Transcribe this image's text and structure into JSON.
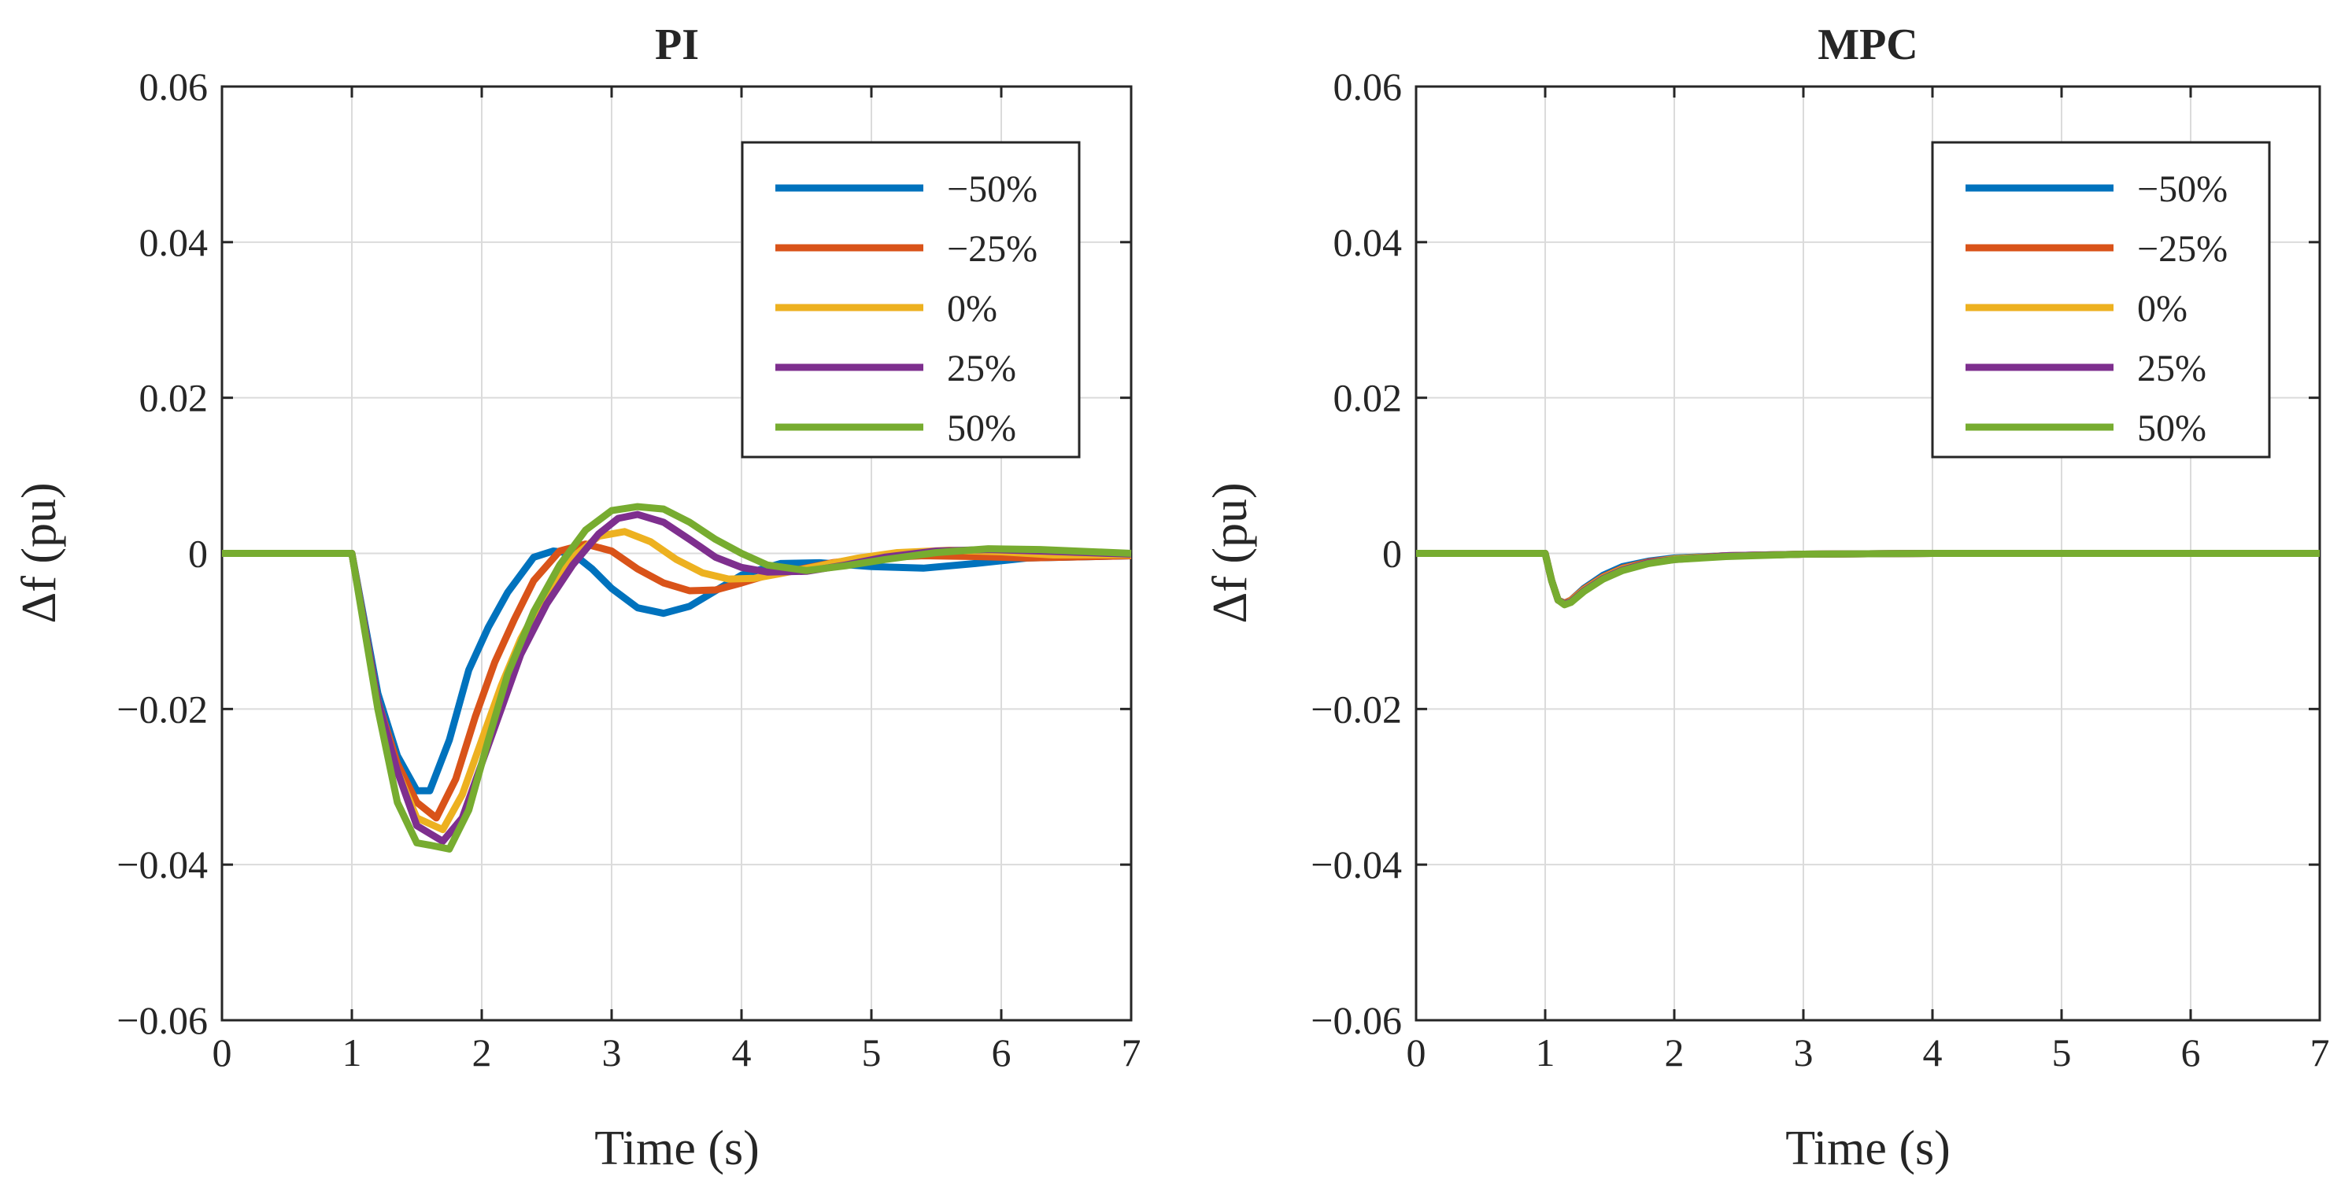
{
  "colors": {
    "neg50": "#0072BD",
    "neg25": "#D95319",
    "zero": "#EDB120",
    "pos25": "#7E2F8E",
    "pos50": "#77AC30",
    "grid": "#DBDBDB",
    "axis": "#262626"
  },
  "chart_data": [
    {
      "type": "line",
      "title": "PI",
      "xlabel": "Time (s)",
      "ylabel": "Δf (pu)",
      "xlim": [
        0,
        7
      ],
      "ylim": [
        -0.06,
        0.06
      ],
      "xticks": [
        0,
        1,
        2,
        3,
        4,
        5,
        6,
        7
      ],
      "xtick_labels": [
        "0",
        "1",
        "2",
        "3",
        "4",
        "5",
        "6",
        "7"
      ],
      "yticks": [
        0.06,
        0.04,
        0.02,
        0,
        -0.02,
        -0.04,
        -0.06
      ],
      "ytick_labels": [
        "0.06",
        "0.04",
        "0.02",
        "0",
        "−0.02",
        "−0.04",
        "−0.06"
      ],
      "grid": true,
      "legend_position": "top-right",
      "series": [
        {
          "name": "−50%",
          "color": "#0072BD",
          "x": [
            0,
            1,
            1.2,
            1.35,
            1.5,
            1.6,
            1.75,
            1.9,
            2.05,
            2.2,
            2.4,
            2.55,
            2.7,
            2.85,
            3.0,
            3.2,
            3.4,
            3.6,
            3.8,
            4.0,
            4.3,
            4.6,
            5.0,
            5.4,
            5.8,
            6.2,
            7.0
          ],
          "y": [
            0,
            0,
            -0.018,
            -0.026,
            -0.0305,
            -0.0305,
            -0.024,
            -0.015,
            -0.0095,
            -0.005,
            -0.0005,
            0.0003,
            0.0,
            -0.002,
            -0.0045,
            -0.007,
            -0.0077,
            -0.0068,
            -0.0048,
            -0.0028,
            -0.0013,
            -0.0012,
            -0.0017,
            -0.0019,
            -0.0013,
            -0.0006,
            -0.0003
          ]
        },
        {
          "name": "−25%",
          "color": "#D95319",
          "x": [
            0,
            1,
            1.2,
            1.35,
            1.5,
            1.65,
            1.8,
            1.95,
            2.1,
            2.25,
            2.4,
            2.6,
            2.8,
            3.0,
            3.2,
            3.4,
            3.6,
            3.8,
            4.0,
            4.2,
            4.4,
            4.7,
            5.0,
            5.4,
            5.8,
            6.2,
            7.0
          ],
          "y": [
            0,
            0,
            -0.019,
            -0.027,
            -0.032,
            -0.034,
            -0.029,
            -0.021,
            -0.014,
            -0.0085,
            -0.0035,
            0.0003,
            0.0012,
            0.0003,
            -0.002,
            -0.0038,
            -0.0048,
            -0.0047,
            -0.0038,
            -0.0028,
            -0.0022,
            -0.0012,
            -0.0006,
            -0.0003,
            -0.0004,
            -0.0006,
            -0.0003
          ]
        },
        {
          "name": "0%",
          "color": "#EDB120",
          "x": [
            0,
            1,
            1.2,
            1.35,
            1.5,
            1.7,
            1.85,
            2.0,
            2.15,
            2.3,
            2.5,
            2.7,
            2.9,
            3.1,
            3.3,
            3.5,
            3.7,
            3.9,
            4.1,
            4.3,
            4.6,
            4.9,
            5.2,
            5.6,
            6.0,
            6.4,
            7.0
          ],
          "y": [
            0,
            0,
            -0.019,
            -0.028,
            -0.034,
            -0.0355,
            -0.031,
            -0.024,
            -0.017,
            -0.011,
            -0.005,
            -0.0005,
            0.0022,
            0.0028,
            0.0015,
            -0.0008,
            -0.0025,
            -0.0033,
            -0.0032,
            -0.0026,
            -0.0016,
            -0.0006,
            0.0001,
            0.0004,
            0.0002,
            -0.0002,
            -0.0002
          ]
        },
        {
          "name": "25%",
          "color": "#7E2F8E",
          "x": [
            0,
            1,
            1.2,
            1.35,
            1.5,
            1.7,
            1.85,
            2.0,
            2.15,
            2.3,
            2.5,
            2.7,
            2.9,
            3.05,
            3.2,
            3.4,
            3.6,
            3.8,
            4.0,
            4.2,
            4.5,
            4.8,
            5.1,
            5.5,
            5.9,
            6.3,
            7.0
          ],
          "y": [
            0,
            0,
            -0.019,
            -0.028,
            -0.035,
            -0.037,
            -0.034,
            -0.027,
            -0.02,
            -0.013,
            -0.0065,
            -0.0015,
            0.0025,
            0.0045,
            0.005,
            0.004,
            0.0018,
            -0.0005,
            -0.0018,
            -0.0024,
            -0.0023,
            -0.0015,
            -0.0005,
            0.0003,
            0.0005,
            0.0003,
            -0.0001
          ]
        },
        {
          "name": "50%",
          "color": "#77AC30",
          "x": [
            0,
            1,
            1.2,
            1.35,
            1.5,
            1.6,
            1.75,
            1.9,
            2.05,
            2.2,
            2.4,
            2.6,
            2.8,
            3.0,
            3.2,
            3.4,
            3.6,
            3.8,
            4.0,
            4.2,
            4.5,
            4.8,
            5.1,
            5.5,
            5.9,
            6.3,
            7.0
          ],
          "y": [
            0,
            0,
            -0.02,
            -0.032,
            -0.0372,
            -0.0375,
            -0.038,
            -0.033,
            -0.024,
            -0.0155,
            -0.0075,
            -0.0015,
            0.003,
            0.0055,
            0.006,
            0.0057,
            0.004,
            0.0018,
            0.0,
            -0.0015,
            -0.0022,
            -0.0016,
            -0.0008,
            0.0001,
            0.0006,
            0.0005,
            0.0
          ]
        }
      ]
    },
    {
      "type": "line",
      "title": "MPC",
      "xlabel": "Time (s)",
      "ylabel": "Δf (pu)",
      "xlim": [
        0,
        7
      ],
      "ylim": [
        -0.06,
        0.06
      ],
      "xticks": [
        0,
        1,
        2,
        3,
        4,
        5,
        6,
        7
      ],
      "xtick_labels": [
        "0",
        "1",
        "2",
        "3",
        "4",
        "5",
        "6",
        "7"
      ],
      "yticks": [
        0.06,
        0.04,
        0.02,
        0,
        -0.02,
        -0.04,
        -0.06
      ],
      "ytick_labels": [
        "0.06",
        "0.04",
        "0.02",
        "0",
        "−0.02",
        "−0.04",
        "−0.06"
      ],
      "grid": true,
      "legend_position": "top-right",
      "series": [
        {
          "name": "−50%",
          "color": "#0072BD",
          "x": [
            0,
            1,
            1.05,
            1.1,
            1.15,
            1.2,
            1.3,
            1.45,
            1.6,
            1.8,
            2.0,
            2.4,
            3.0,
            4.0,
            7.0
          ],
          "y": [
            0,
            0,
            -0.0035,
            -0.006,
            -0.0064,
            -0.006,
            -0.0045,
            -0.0028,
            -0.0017,
            -0.001,
            -0.0006,
            -0.0003,
            -0.0001,
            0,
            0
          ]
        },
        {
          "name": "−25%",
          "color": "#D95319",
          "x": [
            0,
            1,
            1.05,
            1.1,
            1.15,
            1.2,
            1.3,
            1.45,
            1.6,
            1.8,
            2.0,
            2.4,
            3.0,
            4.0,
            7.0
          ],
          "y": [
            0,
            0,
            -0.0035,
            -0.006,
            -0.0064,
            -0.006,
            -0.0046,
            -0.003,
            -0.0019,
            -0.0011,
            -0.0007,
            -0.0003,
            -0.0001,
            0,
            0
          ]
        },
        {
          "name": "0%",
          "color": "#EDB120",
          "x": [
            0,
            1,
            1.05,
            1.1,
            1.15,
            1.2,
            1.3,
            1.45,
            1.6,
            1.8,
            2.0,
            2.4,
            3.0,
            4.0,
            7.0
          ],
          "y": [
            0,
            0,
            -0.0035,
            -0.006,
            -0.0065,
            -0.0061,
            -0.0047,
            -0.0031,
            -0.002,
            -0.0012,
            -0.0007,
            -0.0003,
            -0.0001,
            0,
            0
          ]
        },
        {
          "name": "25%",
          "color": "#7E2F8E",
          "x": [
            0,
            1,
            1.05,
            1.1,
            1.15,
            1.2,
            1.3,
            1.45,
            1.6,
            1.8,
            2.0,
            2.4,
            3.0,
            4.0,
            7.0
          ],
          "y": [
            0,
            0,
            -0.0035,
            -0.006,
            -0.0065,
            -0.0062,
            -0.0048,
            -0.0032,
            -0.0021,
            -0.0012,
            -0.0008,
            -0.0003,
            -0.0001,
            0,
            0
          ]
        },
        {
          "name": "50%",
          "color": "#77AC30",
          "x": [
            0,
            1,
            1.05,
            1.1,
            1.15,
            1.2,
            1.3,
            1.45,
            1.6,
            1.8,
            2.0,
            2.4,
            3.0,
            4.0,
            7.0
          ],
          "y": [
            0,
            0,
            -0.0035,
            -0.006,
            -0.0066,
            -0.0063,
            -0.0049,
            -0.0033,
            -0.0022,
            -0.0013,
            -0.0008,
            -0.0004,
            -0.0001,
            0,
            0
          ]
        }
      ]
    }
  ]
}
